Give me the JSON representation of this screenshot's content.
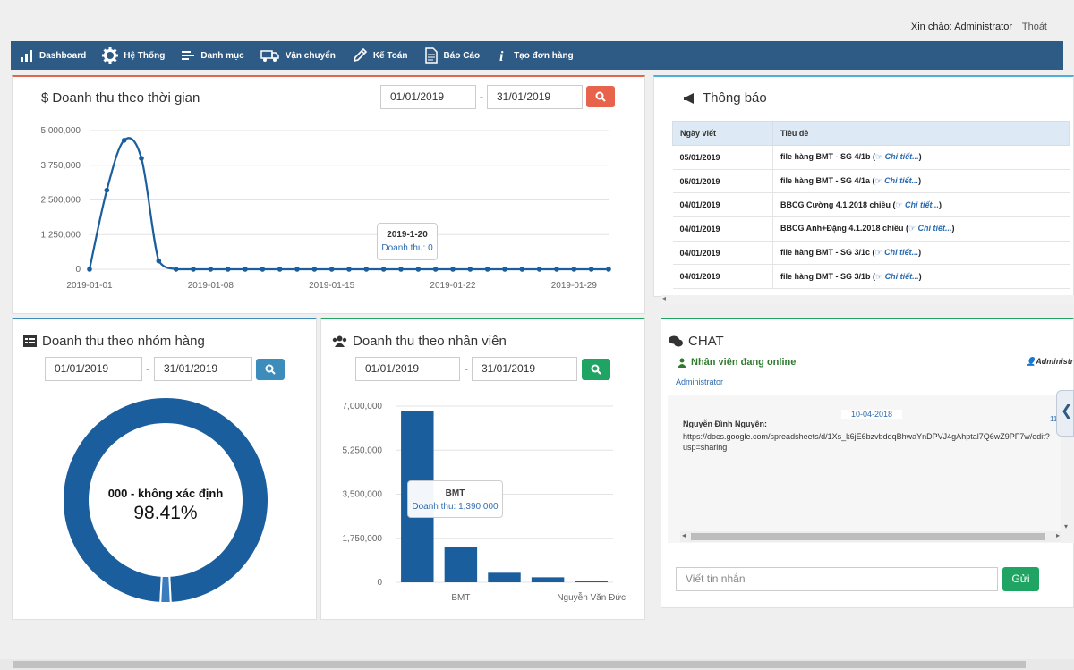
{
  "header": {
    "greeting": "Xin chào: Administrator",
    "separator": "|",
    "logout": "Thoát"
  },
  "nav": [
    {
      "label": "Dashboard",
      "icon": "bar-chart-icon"
    },
    {
      "label": "Hệ Thống",
      "icon": "gear-icon"
    },
    {
      "label": "Danh mục",
      "icon": "list-icon"
    },
    {
      "label": "Vận chuyển",
      "icon": "truck-icon"
    },
    {
      "label": "Kế Toán",
      "icon": "pencil-icon"
    },
    {
      "label": "Báo Cáo",
      "icon": "document-icon"
    },
    {
      "label": "Tạo đơn hàng",
      "icon": "info-icon"
    }
  ],
  "time_panel": {
    "title": "Doanh thu theo thời gian",
    "from": "01/01/2019",
    "dash": "-",
    "to": "31/01/2019",
    "tooltip": {
      "title": "2019-1-20",
      "label": "Doanh thu: 0"
    }
  },
  "group_panel": {
    "title": "Doanh thu theo nhóm hàng",
    "from": "01/01/2019",
    "dash": "-",
    "to": "31/01/2019",
    "center_label": "000 - không xác định",
    "center_value": "98.41%"
  },
  "staff_panel": {
    "title": "Doanh thu theo nhân viên",
    "from": "01/01/2019",
    "dash": "-",
    "to": "31/01/2019",
    "tooltip": {
      "title": "BMT",
      "label": "Doanh thu: 1,390,000"
    }
  },
  "notice_panel": {
    "title": "Thông báo",
    "headers": [
      "Ngày viết",
      "Tiêu đề"
    ],
    "detail": "Chi tiết...",
    "rows": [
      {
        "date": "05/01/2019",
        "title": "file hàng BMT - SG 4/1b"
      },
      {
        "date": "05/01/2019",
        "title": "file hàng BMT - SG 4/1a"
      },
      {
        "date": "04/01/2019",
        "title": "BBCG Cường 4.1.2018 chiều"
      },
      {
        "date": "04/01/2019",
        "title": "BBCG Anh+Đặng 4.1.2018 chiều"
      },
      {
        "date": "04/01/2019",
        "title": "file hàng BMT - SG 3/1c"
      },
      {
        "date": "04/01/2019",
        "title": "file hàng BMT - SG 3/1b"
      }
    ]
  },
  "chat_panel": {
    "title": "CHAT",
    "online_label": "Nhân viên đang online",
    "online_right": "Administr",
    "online_user": "Administrator",
    "date": "10-04-2018",
    "time_frag": "11",
    "sender": "Nguyễn Đình Nguyên:",
    "message_line1": "https://docs.google.com/spreadsheets/d/1Xs_k6jE6bzvbdqqBhwaYnDPVJ4gAhptal7Q6wZ9PF7w/edit?",
    "message_line2": "usp=sharing",
    "input_placeholder": "Viết tin nhắn",
    "send": "Gửi"
  },
  "colors": {
    "nav": "#2e5b85",
    "series": "#1a5e9e",
    "red": "#e8634c",
    "blue": "#3c8dbc",
    "green": "#1fa463"
  },
  "chart_data": [
    {
      "type": "line",
      "title": "Doanh thu theo thời gian",
      "x": [
        "2019-01-01",
        "2019-01-02",
        "2019-01-03",
        "2019-01-04",
        "2019-01-05",
        "2019-01-06",
        "2019-01-07",
        "2019-01-08",
        "2019-01-09",
        "2019-01-10",
        "2019-01-11",
        "2019-01-12",
        "2019-01-13",
        "2019-01-14",
        "2019-01-15",
        "2019-01-16",
        "2019-01-17",
        "2019-01-18",
        "2019-01-19",
        "2019-01-20",
        "2019-01-21",
        "2019-01-22",
        "2019-01-23",
        "2019-01-24",
        "2019-01-25",
        "2019-01-26",
        "2019-01-27",
        "2019-01-28",
        "2019-01-29",
        "2019-01-30",
        "2019-01-31"
      ],
      "values": [
        0,
        2850000,
        4650000,
        4000000,
        300000,
        0,
        0,
        0,
        0,
        0,
        0,
        0,
        0,
        0,
        0,
        0,
        0,
        0,
        0,
        0,
        0,
        0,
        0,
        0,
        0,
        0,
        0,
        0,
        0,
        0,
        0
      ],
      "ylim": [
        0,
        5000000
      ],
      "yticks": [
        "5,000,000",
        "3,750,000",
        "2,500,000",
        "1,250,000",
        "0"
      ],
      "xticks": [
        "2019-01-01",
        "2019-01-08",
        "2019-01-15",
        "2019-01-22",
        "2019-01-29"
      ]
    },
    {
      "type": "pie",
      "title": "Doanh thu theo nhóm hàng",
      "slices": [
        {
          "label": "000 - không xác định",
          "value": 98.41
        },
        {
          "label": "",
          "value": 1.59
        }
      ]
    },
    {
      "type": "bar",
      "title": "Doanh thu theo nhân viên",
      "values": [
        6800000,
        1390000,
        380000,
        200000,
        60000
      ],
      "ylim": [
        0,
        7000000
      ],
      "yticks": [
        "7,000,000",
        "5,250,000",
        "3,500,000",
        "1,750,000",
        "0"
      ],
      "xlabels": [
        {
          "index": 1,
          "label": "BMT"
        },
        {
          "index": 4,
          "label": "Nguyễn Văn Đức"
        }
      ]
    }
  ]
}
